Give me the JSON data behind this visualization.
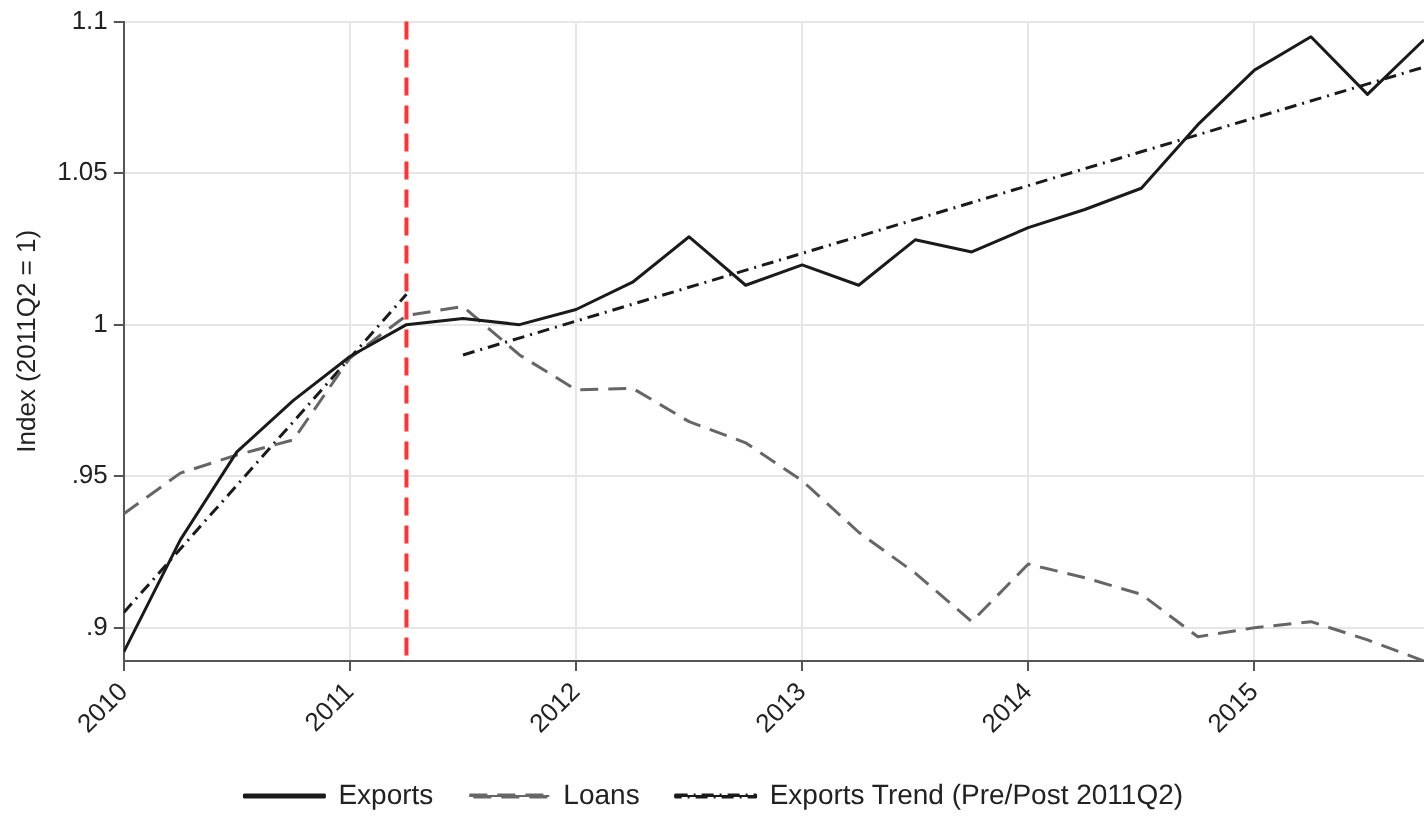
{
  "chart_data": {
    "type": "line",
    "ylabel": "Index (2011Q2 = 1)",
    "xlim": [
      2010,
      2015.75
    ],
    "xticks": [
      2010,
      2011,
      2012,
      2013,
      2014,
      2015
    ],
    "ylim": [
      0.889,
      1.1
    ],
    "yticks": [
      {
        "value": 0.9,
        "label": ".9"
      },
      {
        "value": 0.95,
        "label": ".95"
      },
      1,
      1.05,
      1.1
    ],
    "grid": true,
    "legend": "bottom",
    "marker": "none",
    "ref_lines": [
      {
        "axis": "x",
        "value": 2011.25,
        "color": "#ff3333",
        "line_style": "dashed"
      }
    ],
    "series": [
      {
        "name": "Exports",
        "color": "#1a1a1a",
        "line_style": "solid",
        "x": [
          2010,
          2010.25,
          2010.5,
          2010.75,
          2011,
          2011.25,
          2011.5,
          2011.75,
          2012,
          2012.25,
          2012.5,
          2012.75,
          2013,
          2013.25,
          2013.5,
          2013.75,
          2014,
          2014.25,
          2014.5,
          2014.75,
          2015,
          2015.25,
          2015.5,
          2015.75
        ],
        "values": [
          0.892,
          0.929,
          0.958,
          0.975,
          0.9895,
          1.0,
          1.002,
          1.0,
          1.005,
          1.014,
          1.029,
          1.013,
          1.0197,
          1.013,
          1.028,
          1.024,
          1.032,
          1.038,
          1.045,
          1.066,
          1.084,
          1.095,
          1.076,
          1.094
        ]
      },
      {
        "name": "Loans",
        "color": "#666666",
        "line_style": "dashed",
        "x": [
          2010,
          2010.25,
          2010.5,
          2010.75,
          2011,
          2011.25,
          2011.5,
          2011.75,
          2012,
          2012.25,
          2012.5,
          2012.75,
          2013,
          2013.25,
          2013.5,
          2013.75,
          2014,
          2014.25,
          2014.5,
          2014.75,
          2015,
          2015.25,
          2015.5,
          2015.75
        ],
        "values": [
          0.9376,
          0.951,
          0.957,
          0.962,
          0.989,
          1.003,
          1.006,
          0.99,
          0.9785,
          0.979,
          0.968,
          0.961,
          0.9485,
          0.9315,
          0.918,
          0.902,
          0.921,
          0.9165,
          0.911,
          0.897,
          0.9,
          0.902,
          0.896,
          0.889
        ]
      },
      {
        "name": "Exports Trend (Pre/Post 2011Q2)",
        "color": "#1a1a1a",
        "line_style": "dotted",
        "x": [
          2010,
          2011.25,
          2011.375,
          2011.5,
          2015.75
        ],
        "values": [
          0.905,
          1.01,
          null,
          0.99,
          1.085
        ]
      }
    ]
  }
}
